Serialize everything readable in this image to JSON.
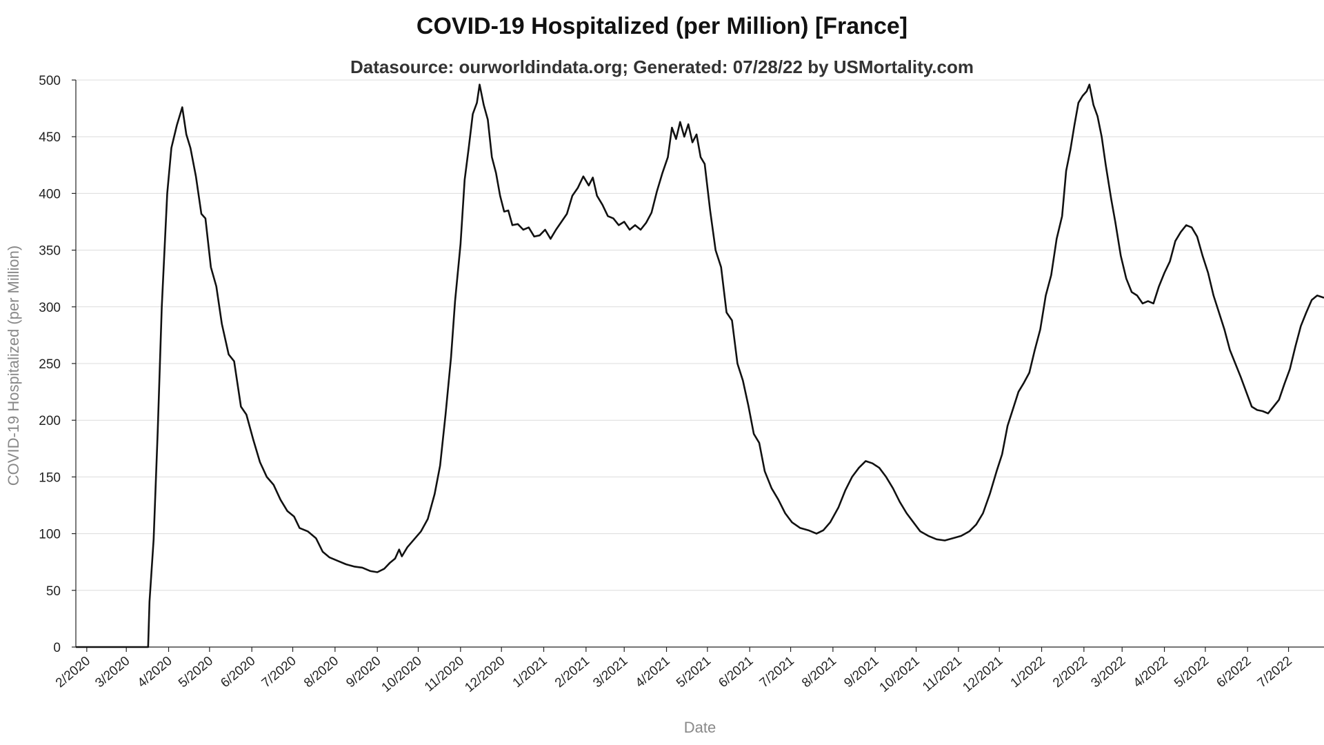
{
  "chart_data": {
    "type": "line",
    "title": "COVID-19 Hospitalized (per Million) [France]",
    "subtitle": "Datasource: ourworldindata.org; Generated: 07/28/22 by USMortality.com",
    "xlabel": "Date",
    "ylabel": "COVID-19 Hospitalized (per Million)",
    "ylim": [
      0,
      500
    ],
    "yticks": [
      0,
      50,
      100,
      150,
      200,
      250,
      300,
      350,
      400,
      450,
      500
    ],
    "xlim": [
      "2020-01-24",
      "2022-07-27"
    ],
    "xticks": [
      {
        "date": "2020-02-01",
        "label": "2/2020"
      },
      {
        "date": "2020-03-01",
        "label": "3/2020"
      },
      {
        "date": "2020-04-01",
        "label": "4/2020"
      },
      {
        "date": "2020-05-01",
        "label": "5/2020"
      },
      {
        "date": "2020-06-01",
        "label": "6/2020"
      },
      {
        "date": "2020-07-01",
        "label": "7/2020"
      },
      {
        "date": "2020-08-01",
        "label": "8/2020"
      },
      {
        "date": "2020-09-01",
        "label": "9/2020"
      },
      {
        "date": "2020-10-01",
        "label": "10/2020"
      },
      {
        "date": "2020-11-01",
        "label": "11/2020"
      },
      {
        "date": "2020-12-01",
        "label": "12/2020"
      },
      {
        "date": "2021-01-01",
        "label": "1/2021"
      },
      {
        "date": "2021-02-01",
        "label": "2/2021"
      },
      {
        "date": "2021-03-01",
        "label": "3/2021"
      },
      {
        "date": "2021-04-01",
        "label": "4/2021"
      },
      {
        "date": "2021-05-01",
        "label": "5/2021"
      },
      {
        "date": "2021-06-01",
        "label": "6/2021"
      },
      {
        "date": "2021-07-01",
        "label": "7/2021"
      },
      {
        "date": "2021-08-01",
        "label": "8/2021"
      },
      {
        "date": "2021-09-01",
        "label": "9/2021"
      },
      {
        "date": "2021-10-01",
        "label": "10/2021"
      },
      {
        "date": "2021-11-01",
        "label": "11/2021"
      },
      {
        "date": "2021-12-01",
        "label": "12/2021"
      },
      {
        "date": "2022-01-01",
        "label": "1/2022"
      },
      {
        "date": "2022-02-01",
        "label": "2/2022"
      },
      {
        "date": "2022-03-01",
        "label": "3/2022"
      },
      {
        "date": "2022-04-01",
        "label": "4/2022"
      },
      {
        "date": "2022-05-01",
        "label": "5/2022"
      },
      {
        "date": "2022-06-01",
        "label": "6/2022"
      },
      {
        "date": "2022-07-01",
        "label": "7/2022"
      }
    ],
    "grid": true,
    "series": [
      {
        "color": "#111111",
        "points": [
          [
            "2020-01-24",
            0
          ],
          [
            "2020-03-17",
            0
          ],
          [
            "2020-03-18",
            40
          ],
          [
            "2020-03-21",
            95
          ],
          [
            "2020-03-24",
            190
          ],
          [
            "2020-03-27",
            300
          ],
          [
            "2020-03-31",
            400
          ],
          [
            "2020-04-03",
            440
          ],
          [
            "2020-04-07",
            460
          ],
          [
            "2020-04-11",
            476
          ],
          [
            "2020-04-14",
            452
          ],
          [
            "2020-04-17",
            440
          ],
          [
            "2020-04-21",
            415
          ],
          [
            "2020-04-25",
            382
          ],
          [
            "2020-04-28",
            378
          ],
          [
            "2020-05-02",
            335
          ],
          [
            "2020-05-06",
            318
          ],
          [
            "2020-05-10",
            285
          ],
          [
            "2020-05-15",
            258
          ],
          [
            "2020-05-19",
            252
          ],
          [
            "2020-05-24",
            212
          ],
          [
            "2020-05-28",
            205
          ],
          [
            "2020-06-02",
            183
          ],
          [
            "2020-06-07",
            163
          ],
          [
            "2020-06-12",
            150
          ],
          [
            "2020-06-17",
            143
          ],
          [
            "2020-06-22",
            130
          ],
          [
            "2020-06-27",
            120
          ],
          [
            "2020-07-02",
            115
          ],
          [
            "2020-07-06",
            105
          ],
          [
            "2020-07-12",
            102
          ],
          [
            "2020-07-18",
            96
          ],
          [
            "2020-07-23",
            84
          ],
          [
            "2020-07-28",
            79
          ],
          [
            "2020-08-03",
            76
          ],
          [
            "2020-08-09",
            73
          ],
          [
            "2020-08-15",
            71
          ],
          [
            "2020-08-21",
            70
          ],
          [
            "2020-08-27",
            67
          ],
          [
            "2020-09-01",
            66
          ],
          [
            "2020-09-06",
            69
          ],
          [
            "2020-09-10",
            74
          ],
          [
            "2020-09-14",
            78
          ],
          [
            "2020-09-17",
            86
          ],
          [
            "2020-09-19",
            80
          ],
          [
            "2020-09-23",
            88
          ],
          [
            "2020-09-28",
            95
          ],
          [
            "2020-10-03",
            102
          ],
          [
            "2020-10-08",
            113
          ],
          [
            "2020-10-13",
            135
          ],
          [
            "2020-10-17",
            160
          ],
          [
            "2020-10-21",
            205
          ],
          [
            "2020-10-25",
            255
          ],
          [
            "2020-10-28",
            305
          ],
          [
            "2020-11-01",
            355
          ],
          [
            "2020-11-04",
            412
          ],
          [
            "2020-11-07",
            440
          ],
          [
            "2020-11-10",
            470
          ],
          [
            "2020-11-13",
            480
          ],
          [
            "2020-11-15",
            496
          ],
          [
            "2020-11-18",
            478
          ],
          [
            "2020-11-21",
            465
          ],
          [
            "2020-11-24",
            432
          ],
          [
            "2020-11-27",
            418
          ],
          [
            "2020-11-30",
            398
          ],
          [
            "2020-12-03",
            384
          ],
          [
            "2020-12-06",
            385
          ],
          [
            "2020-12-09",
            372
          ],
          [
            "2020-12-13",
            373
          ],
          [
            "2020-12-17",
            368
          ],
          [
            "2020-12-21",
            370
          ],
          [
            "2020-12-25",
            362
          ],
          [
            "2020-12-29",
            363
          ],
          [
            "2021-01-02",
            368
          ],
          [
            "2021-01-06",
            360
          ],
          [
            "2021-01-10",
            368
          ],
          [
            "2021-01-14",
            375
          ],
          [
            "2021-01-18",
            382
          ],
          [
            "2021-01-22",
            398
          ],
          [
            "2021-01-26",
            405
          ],
          [
            "2021-01-30",
            415
          ],
          [
            "2021-02-03",
            407
          ],
          [
            "2021-02-06",
            414
          ],
          [
            "2021-02-09",
            398
          ],
          [
            "2021-02-13",
            390
          ],
          [
            "2021-02-17",
            380
          ],
          [
            "2021-02-21",
            378
          ],
          [
            "2021-02-25",
            372
          ],
          [
            "2021-03-01",
            375
          ],
          [
            "2021-03-05",
            368
          ],
          [
            "2021-03-09",
            372
          ],
          [
            "2021-03-13",
            368
          ],
          [
            "2021-03-17",
            374
          ],
          [
            "2021-03-21",
            383
          ],
          [
            "2021-03-25",
            402
          ],
          [
            "2021-03-29",
            418
          ],
          [
            "2021-04-02",
            432
          ],
          [
            "2021-04-05",
            458
          ],
          [
            "2021-04-08",
            448
          ],
          [
            "2021-04-11",
            463
          ],
          [
            "2021-04-14",
            450
          ],
          [
            "2021-04-17",
            461
          ],
          [
            "2021-04-20",
            445
          ],
          [
            "2021-04-23",
            452
          ],
          [
            "2021-04-26",
            432
          ],
          [
            "2021-04-29",
            426
          ],
          [
            "2021-05-03",
            385
          ],
          [
            "2021-05-07",
            350
          ],
          [
            "2021-05-11",
            335
          ],
          [
            "2021-05-15",
            295
          ],
          [
            "2021-05-19",
            288
          ],
          [
            "2021-05-23",
            250
          ],
          [
            "2021-05-27",
            235
          ],
          [
            "2021-05-31",
            213
          ],
          [
            "2021-06-04",
            188
          ],
          [
            "2021-06-08",
            180
          ],
          [
            "2021-06-12",
            155
          ],
          [
            "2021-06-17",
            140
          ],
          [
            "2021-06-22",
            130
          ],
          [
            "2021-06-27",
            118
          ],
          [
            "2021-07-02",
            110
          ],
          [
            "2021-07-08",
            105
          ],
          [
            "2021-07-14",
            103
          ],
          [
            "2021-07-20",
            100
          ],
          [
            "2021-07-25",
            103
          ],
          [
            "2021-07-30",
            110
          ],
          [
            "2021-08-05",
            123
          ],
          [
            "2021-08-10",
            138
          ],
          [
            "2021-08-15",
            150
          ],
          [
            "2021-08-20",
            158
          ],
          [
            "2021-08-25",
            164
          ],
          [
            "2021-08-30",
            162
          ],
          [
            "2021-09-04",
            158
          ],
          [
            "2021-09-09",
            150
          ],
          [
            "2021-09-14",
            140
          ],
          [
            "2021-09-19",
            128
          ],
          [
            "2021-09-24",
            118
          ],
          [
            "2021-09-29",
            110
          ],
          [
            "2021-10-04",
            102
          ],
          [
            "2021-10-10",
            98
          ],
          [
            "2021-10-16",
            95
          ],
          [
            "2021-10-22",
            94
          ],
          [
            "2021-10-28",
            96
          ],
          [
            "2021-11-03",
            98
          ],
          [
            "2021-11-09",
            102
          ],
          [
            "2021-11-14",
            108
          ],
          [
            "2021-11-19",
            118
          ],
          [
            "2021-11-24",
            135
          ],
          [
            "2021-11-29",
            155
          ],
          [
            "2021-12-03",
            170
          ],
          [
            "2021-12-07",
            195
          ],
          [
            "2021-12-11",
            210
          ],
          [
            "2021-12-15",
            225
          ],
          [
            "2021-12-19",
            233
          ],
          [
            "2021-12-23",
            242
          ],
          [
            "2021-12-27",
            262
          ],
          [
            "2021-12-31",
            280
          ],
          [
            "2022-01-04",
            310
          ],
          [
            "2022-01-08",
            328
          ],
          [
            "2022-01-12",
            360
          ],
          [
            "2022-01-16",
            380
          ],
          [
            "2022-01-19",
            420
          ],
          [
            "2022-01-22",
            438
          ],
          [
            "2022-01-25",
            460
          ],
          [
            "2022-01-28",
            480
          ],
          [
            "2022-01-31",
            486
          ],
          [
            "2022-02-03",
            490
          ],
          [
            "2022-02-05",
            496
          ],
          [
            "2022-02-08",
            478
          ],
          [
            "2022-02-11",
            468
          ],
          [
            "2022-02-14",
            450
          ],
          [
            "2022-02-17",
            425
          ],
          [
            "2022-02-21",
            395
          ],
          [
            "2022-02-24",
            375
          ],
          [
            "2022-02-28",
            345
          ],
          [
            "2022-03-04",
            325
          ],
          [
            "2022-03-08",
            313
          ],
          [
            "2022-03-12",
            310
          ],
          [
            "2022-03-16",
            303
          ],
          [
            "2022-03-20",
            305
          ],
          [
            "2022-03-24",
            303
          ],
          [
            "2022-03-28",
            318
          ],
          [
            "2022-04-01",
            330
          ],
          [
            "2022-04-05",
            340
          ],
          [
            "2022-04-09",
            358
          ],
          [
            "2022-04-13",
            366
          ],
          [
            "2022-04-17",
            372
          ],
          [
            "2022-04-21",
            370
          ],
          [
            "2022-04-25",
            362
          ],
          [
            "2022-04-29",
            345
          ],
          [
            "2022-05-03",
            330
          ],
          [
            "2022-05-07",
            310
          ],
          [
            "2022-05-11",
            295
          ],
          [
            "2022-05-15",
            280
          ],
          [
            "2022-05-19",
            262
          ],
          [
            "2022-05-23",
            250
          ],
          [
            "2022-05-27",
            238
          ],
          [
            "2022-05-31",
            225
          ],
          [
            "2022-06-04",
            212
          ],
          [
            "2022-06-08",
            209
          ],
          [
            "2022-06-12",
            208
          ],
          [
            "2022-06-16",
            206
          ],
          [
            "2022-06-20",
            212
          ],
          [
            "2022-06-24",
            218
          ],
          [
            "2022-06-28",
            232
          ],
          [
            "2022-07-02",
            245
          ],
          [
            "2022-07-06",
            265
          ],
          [
            "2022-07-10",
            283
          ],
          [
            "2022-07-14",
            295
          ],
          [
            "2022-07-18",
            306
          ],
          [
            "2022-07-22",
            310
          ],
          [
            "2022-07-27",
            308
          ]
        ]
      }
    ]
  }
}
